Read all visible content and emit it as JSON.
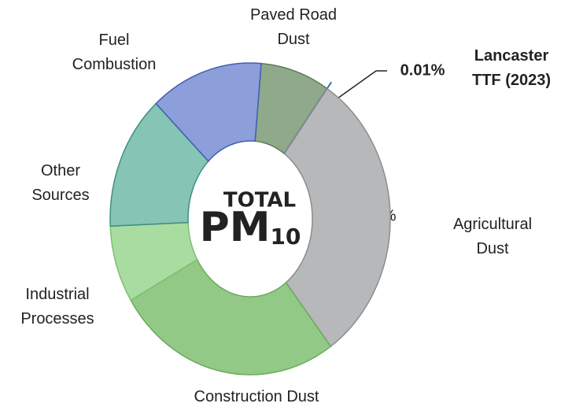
{
  "chart_data": {
    "type": "donut",
    "categories": [
      "Paved Road Dust",
      "Lancaster TTF (2023)",
      "Agricultural Dust",
      "Construction Dust",
      "Industrial Processes",
      "Other Sources",
      "Fuel Combustion"
    ],
    "values": [
      8,
      0.01,
      31,
      26,
      8,
      14,
      13
    ],
    "value_labels": [
      "8%",
      "0.01%",
      "31%",
      "26%",
      "8%",
      "14%",
      "13%"
    ],
    "colors": [
      "#8fa98a",
      "#2e75b6",
      "#b6b8ba",
      "#93c986",
      "#a9dca1",
      "#86c4b6",
      "#8c9fda"
    ],
    "center_text": {
      "line1": "TOTAL",
      "line2": "PM",
      "subscript": "10"
    }
  }
}
